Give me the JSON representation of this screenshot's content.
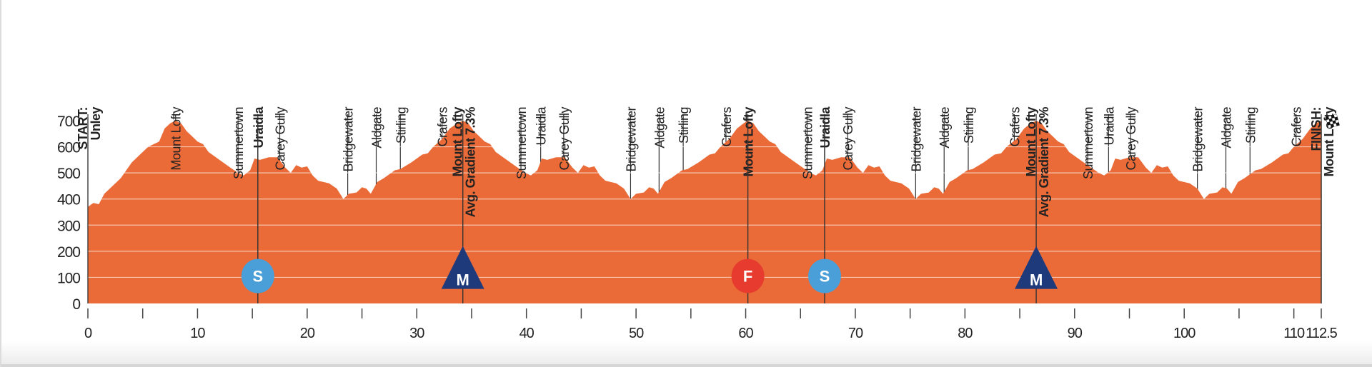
{
  "chart_data": {
    "type": "area",
    "title": "",
    "xlabel": "",
    "ylabel": "",
    "xlim": [
      0,
      112.5
    ],
    "ylim": [
      0,
      700
    ],
    "grid": true,
    "x_ticks": [
      "0",
      "10",
      "20",
      "30",
      "40",
      "50",
      "60",
      "70",
      "80",
      "90",
      "100",
      "110",
      "112.5"
    ],
    "x_tick_values": [
      0,
      10,
      20,
      30,
      40,
      50,
      60,
      70,
      80,
      90,
      100,
      110,
      112.5
    ],
    "x_minor_ticks": [
      5,
      15,
      25,
      35,
      45,
      55,
      65,
      75,
      85,
      95,
      105
    ],
    "y_ticks": [
      "0",
      "100",
      "200",
      "300",
      "400",
      "500",
      "600",
      "700"
    ],
    "y_tick_values": [
      0,
      100,
      200,
      300,
      400,
      500,
      600,
      700
    ],
    "colors": {
      "fill": "#ea6b38",
      "sprint": "#4a9fd8",
      "mountain": "#1f3a7a",
      "finish_sprint": "#e63b2e",
      "line": "#333333"
    },
    "profile": [
      [
        0,
        370
      ],
      [
        0.5,
        385
      ],
      [
        1,
        380
      ],
      [
        1.5,
        420
      ],
      [
        2.5,
        460
      ],
      [
        3,
        480
      ],
      [
        4,
        540
      ],
      [
        5,
        580
      ],
      [
        5.5,
        600
      ],
      [
        6.5,
        620
      ],
      [
        7,
        670
      ],
      [
        7.5,
        690
      ],
      [
        8,
        700
      ],
      [
        8.5,
        690
      ],
      [
        9,
        660
      ],
      [
        9.5,
        640
      ],
      [
        10,
        620
      ],
      [
        10.5,
        610
      ],
      [
        11,
        580
      ],
      [
        12,
        550
      ],
      [
        13,
        520
      ],
      [
        13.7,
        500
      ],
      [
        14.2,
        490
      ],
      [
        14.8,
        510
      ],
      [
        15.2,
        555
      ],
      [
        15.7,
        550
      ],
      [
        16.5,
        560
      ],
      [
        17.3,
        560
      ],
      [
        18,
        520
      ],
      [
        18.5,
        500
      ],
      [
        19,
        530
      ],
      [
        19.5,
        520
      ],
      [
        20,
        525
      ],
      [
        20.5,
        490
      ],
      [
        21,
        470
      ],
      [
        22,
        460
      ],
      [
        22.7,
        440
      ],
      [
        23.3,
        400
      ],
      [
        23.8,
        420
      ],
      [
        24.5,
        425
      ],
      [
        25,
        445
      ],
      [
        25.4,
        440
      ],
      [
        25.8,
        420
      ],
      [
        26.4,
        465
      ],
      [
        27,
        480
      ],
      [
        28,
        510
      ],
      [
        28.5,
        515
      ],
      [
        29.5,
        540
      ],
      [
        30.5,
        570
      ],
      [
        31,
        575
      ],
      [
        31.5,
        600
      ],
      [
        32.3,
        630
      ],
      [
        33,
        670
      ],
      [
        33.7,
        690
      ],
      [
        34.2,
        700
      ],
      [
        34.7,
        690
      ],
      [
        35.2,
        660
      ],
      [
        35.7,
        640
      ],
      [
        36.2,
        620
      ],
      [
        36.7,
        610
      ],
      [
        37.2,
        580
      ],
      [
        38.2,
        550
      ],
      [
        39.2,
        520
      ],
      [
        39.9,
        500
      ],
      [
        40.4,
        490
      ],
      [
        41,
        510
      ],
      [
        41.4,
        555
      ],
      [
        41.9,
        550
      ],
      [
        42.7,
        560
      ],
      [
        43.5,
        560
      ],
      [
        44.2,
        520
      ],
      [
        44.7,
        500
      ],
      [
        45.2,
        530
      ],
      [
        45.7,
        520
      ],
      [
        46.2,
        525
      ],
      [
        46.7,
        490
      ],
      [
        47.2,
        470
      ],
      [
        48.2,
        460
      ],
      [
        48.9,
        440
      ],
      [
        49.5,
        400
      ],
      [
        50,
        420
      ],
      [
        50.7,
        425
      ],
      [
        51.2,
        445
      ],
      [
        51.6,
        440
      ],
      [
        52,
        420
      ],
      [
        52.6,
        465
      ],
      [
        53.2,
        480
      ],
      [
        54.2,
        510
      ],
      [
        54.7,
        515
      ],
      [
        55.7,
        540
      ],
      [
        56.7,
        570
      ],
      [
        57.2,
        575
      ],
      [
        57.7,
        600
      ],
      [
        58.5,
        630
      ],
      [
        59.2,
        670
      ],
      [
        59.8,
        690
      ],
      [
        60.2,
        700
      ],
      [
        60.7,
        690
      ],
      [
        61.2,
        660
      ],
      [
        61.7,
        640
      ],
      [
        62.2,
        620
      ],
      [
        62.7,
        610
      ],
      [
        63.2,
        580
      ],
      [
        64.2,
        550
      ],
      [
        65.2,
        520
      ],
      [
        65.9,
        500
      ],
      [
        66.4,
        490
      ],
      [
        67,
        510
      ],
      [
        67.4,
        555
      ],
      [
        67.9,
        550
      ],
      [
        68.7,
        560
      ],
      [
        69.5,
        560
      ],
      [
        70.2,
        520
      ],
      [
        70.7,
        500
      ],
      [
        71.2,
        530
      ],
      [
        71.7,
        520
      ],
      [
        72.2,
        525
      ],
      [
        72.7,
        490
      ],
      [
        73.2,
        470
      ],
      [
        74.2,
        460
      ],
      [
        74.9,
        440
      ],
      [
        75.5,
        400
      ],
      [
        76,
        420
      ],
      [
        76.7,
        425
      ],
      [
        77.2,
        445
      ],
      [
        77.6,
        440
      ],
      [
        78,
        420
      ],
      [
        78.6,
        465
      ],
      [
        79.2,
        480
      ],
      [
        80.2,
        510
      ],
      [
        80.7,
        515
      ],
      [
        81.7,
        540
      ],
      [
        82.7,
        570
      ],
      [
        83.3,
        575
      ],
      [
        83.8,
        600
      ],
      [
        84.7,
        630
      ],
      [
        85.4,
        670
      ],
      [
        86,
        690
      ],
      [
        86.5,
        700
      ],
      [
        87,
        690
      ],
      [
        87.5,
        660
      ],
      [
        88,
        640
      ],
      [
        88.5,
        620
      ],
      [
        89,
        610
      ],
      [
        89.5,
        580
      ],
      [
        90.5,
        550
      ],
      [
        91.5,
        520
      ],
      [
        92.2,
        500
      ],
      [
        92.7,
        490
      ],
      [
        93.3,
        510
      ],
      [
        93.7,
        555
      ],
      [
        94.2,
        550
      ],
      [
        95,
        560
      ],
      [
        95.8,
        560
      ],
      [
        96.5,
        520
      ],
      [
        97,
        500
      ],
      [
        97.5,
        530
      ],
      [
        98,
        520
      ],
      [
        98.5,
        525
      ],
      [
        99,
        490
      ],
      [
        99.5,
        470
      ],
      [
        100.5,
        460
      ],
      [
        101.2,
        440
      ],
      [
        101.8,
        400
      ],
      [
        102.3,
        420
      ],
      [
        103,
        425
      ],
      [
        103.5,
        445
      ],
      [
        103.9,
        440
      ],
      [
        104.3,
        420
      ],
      [
        104.9,
        465
      ],
      [
        105.5,
        480
      ],
      [
        106.5,
        510
      ],
      [
        107,
        515
      ],
      [
        108,
        540
      ],
      [
        109,
        570
      ],
      [
        109.5,
        575
      ],
      [
        110,
        600
      ],
      [
        110.8,
        630
      ],
      [
        111.5,
        670
      ],
      [
        112,
        690
      ],
      [
        112.5,
        700
      ]
    ],
    "waypoints": [
      {
        "km": 0,
        "lines": [
          "START:",
          "Unley"
        ],
        "bold": true
      },
      {
        "km": 8,
        "lines": [
          "Mount Lofty"
        ],
        "bold": false
      },
      {
        "km": 13.7,
        "lines": [
          "Summertown"
        ],
        "bold": false
      },
      {
        "km": 15.5,
        "lines": [
          "Uraidla"
        ],
        "bold": true,
        "marker": "S"
      },
      {
        "km": 17.5,
        "lines": [
          "Carey Gully"
        ],
        "bold": false
      },
      {
        "km": 23.7,
        "lines": [
          "Bridgewater"
        ],
        "bold": false
      },
      {
        "km": 26.3,
        "lines": [
          "Aldgate"
        ],
        "bold": false
      },
      {
        "km": 28.5,
        "lines": [
          "Stirling"
        ],
        "bold": false
      },
      {
        "km": 32.3,
        "lines": [
          "Crafers"
        ],
        "bold": false
      },
      {
        "km": 34.2,
        "lines": [
          "Mount Lofty",
          "Avg. Gradient 7.3%"
        ],
        "bold": true,
        "marker": "M"
      },
      {
        "km": 39.5,
        "lines": [
          "Summertown"
        ],
        "bold": false
      },
      {
        "km": 41.3,
        "lines": [
          "Uraidla"
        ],
        "bold": false
      },
      {
        "km": 43.4,
        "lines": [
          "Carey Gully"
        ],
        "bold": false
      },
      {
        "km": 49.5,
        "lines": [
          "Bridgewater"
        ],
        "bold": false
      },
      {
        "km": 52.1,
        "lines": [
          "Aldgate"
        ],
        "bold": false
      },
      {
        "km": 54.3,
        "lines": [
          "Stirling"
        ],
        "bold": false
      },
      {
        "km": 58.2,
        "lines": [
          "Crafers"
        ],
        "bold": false
      },
      {
        "km": 60.2,
        "lines": [
          "Mount Lofty"
        ],
        "bold": true,
        "marker": "F"
      },
      {
        "km": 65.6,
        "lines": [
          "Summertown"
        ],
        "bold": false
      },
      {
        "km": 67.2,
        "lines": [
          "Uraidla"
        ],
        "bold": true,
        "marker": "S"
      },
      {
        "km": 69.3,
        "lines": [
          "Carey Gully"
        ],
        "bold": false
      },
      {
        "km": 75.5,
        "lines": [
          "Bridgewater"
        ],
        "bold": false
      },
      {
        "km": 78.1,
        "lines": [
          "Aldgate"
        ],
        "bold": false
      },
      {
        "km": 80.3,
        "lines": [
          "Stirling"
        ],
        "bold": false
      },
      {
        "km": 84.5,
        "lines": [
          "Crafers"
        ],
        "bold": false
      },
      {
        "km": 86.5,
        "lines": [
          "Mount Lofty",
          "Avg. Gradient 7.3%"
        ],
        "bold": true,
        "marker": "M"
      },
      {
        "km": 91.2,
        "lines": [
          "Summertown"
        ],
        "bold": false
      },
      {
        "km": 93.1,
        "lines": [
          "Uraidla"
        ],
        "bold": false
      },
      {
        "km": 95.1,
        "lines": [
          "Carey Gully"
        ],
        "bold": false
      },
      {
        "km": 101.2,
        "lines": [
          "Bridgewater"
        ],
        "bold": false
      },
      {
        "km": 103.8,
        "lines": [
          "Aldgate"
        ],
        "bold": false
      },
      {
        "km": 106,
        "lines": [
          "Stirling"
        ],
        "bold": false
      },
      {
        "km": 110.2,
        "lines": [
          "Crafers"
        ],
        "bold": false
      },
      {
        "km": 112.5,
        "lines": [
          "FINISH:",
          "Mount Lofty"
        ],
        "bold": true,
        "marker": "flag"
      }
    ],
    "marker_icons": {
      "S": "sprint-circle-icon",
      "M": "mountain-triangle-icon",
      "F": "finish-sprint-circle-icon",
      "flag": "checkered-flag-icon"
    }
  }
}
